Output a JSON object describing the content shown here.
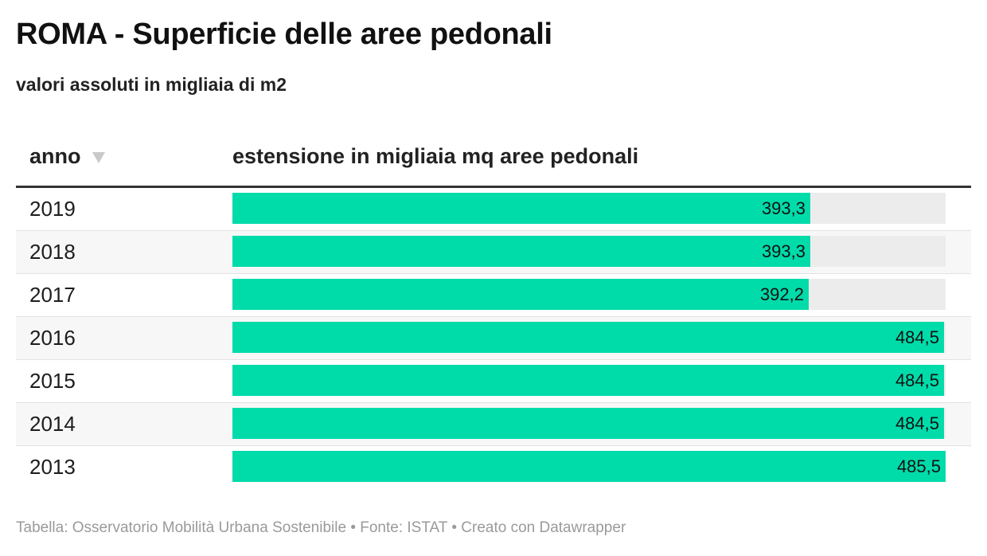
{
  "title": "ROMA - Superficie delle aree pedonali",
  "subtitle": "valori assoluti in migliaia di m2",
  "table": {
    "col_year": "anno",
    "col_value": "estensione in migliaia mq aree pedonali",
    "sort_icon": "sort-desc-triangle-icon"
  },
  "chart_data": {
    "type": "table",
    "columns": [
      "anno",
      "estensione in migliaia mq aree pedonali"
    ],
    "max_value": 485.5,
    "rows": [
      {
        "year": "2019",
        "value": 393.3,
        "label": "393,3"
      },
      {
        "year": "2018",
        "value": 393.3,
        "label": "393,3"
      },
      {
        "year": "2017",
        "value": 392.2,
        "label": "392,2"
      },
      {
        "year": "2016",
        "value": 484.5,
        "label": "484,5"
      },
      {
        "year": "2015",
        "value": 484.5,
        "label": "484,5"
      },
      {
        "year": "2014",
        "value": 484.5,
        "label": "484,5"
      },
      {
        "year": "2013",
        "value": 485.5,
        "label": "485,5"
      }
    ],
    "bar_color": "#00dbaa",
    "track_color": "#ececec"
  },
  "footer": "Tabella: Osservatorio Mobilità Urbana Sostenibile • Fonte: ISTAT • Creato con Datawrapper"
}
